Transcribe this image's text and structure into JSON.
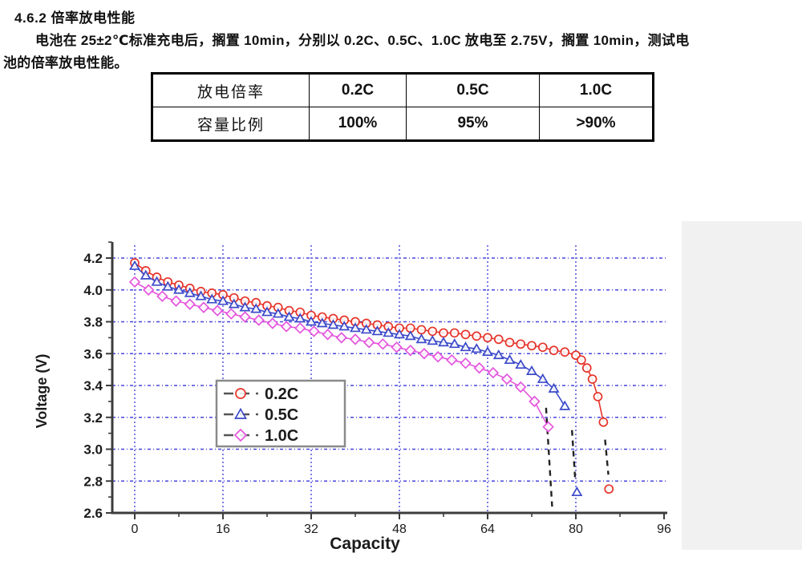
{
  "document": {
    "heading": "4.6.2 倍率放电性能",
    "paragraph_line1": "电池在 25±2℃标准充电后，搁置 10min，分别以 0.2C、0.5C、1.0C 放电至 2.75V，搁置 10min，测试电",
    "paragraph_line2": "池的倍率放电性能。"
  },
  "table": {
    "rows": [
      [
        "放电倍率",
        "0.2C",
        "0.5C",
        "1.0C"
      ],
      [
        "容量比例",
        "100%",
        "95%",
        ">90%"
      ]
    ]
  },
  "chart_data": {
    "type": "line",
    "title": "",
    "xlabel": "Capacity",
    "ylabel": "Voltage (V)",
    "xlim": [
      -4,
      96.5
    ],
    "ylim": [
      2.6,
      4.3
    ],
    "xticks": [
      0,
      16,
      32,
      48,
      64,
      80,
      96
    ],
    "yticks": [
      2.6,
      2.8,
      3.0,
      3.2,
      3.4,
      3.6,
      3.8,
      4.0,
      4.2
    ],
    "grid": true,
    "grid_color": "#4646dd",
    "axis_color": "#3c3c3c",
    "legend_position": "center-left",
    "series": [
      {
        "name": "0.2C",
        "color": "#e63329",
        "marker": "circle",
        "points": [
          [
            0,
            4.17
          ],
          [
            2,
            4.12
          ],
          [
            4,
            4.08
          ],
          [
            6,
            4.05
          ],
          [
            8,
            4.03
          ],
          [
            10,
            4.01
          ],
          [
            12,
            3.99
          ],
          [
            14,
            3.98
          ],
          [
            16,
            3.97
          ],
          [
            18,
            3.95
          ],
          [
            20,
            3.93
          ],
          [
            22,
            3.92
          ],
          [
            24,
            3.9
          ],
          [
            26,
            3.89
          ],
          [
            28,
            3.87
          ],
          [
            30,
            3.86
          ],
          [
            32,
            3.84
          ],
          [
            34,
            3.83
          ],
          [
            36,
            3.82
          ],
          [
            38,
            3.81
          ],
          [
            40,
            3.8
          ],
          [
            42,
            3.79
          ],
          [
            44,
            3.78
          ],
          [
            46,
            3.77
          ],
          [
            48,
            3.76
          ],
          [
            50,
            3.76
          ],
          [
            52,
            3.75
          ],
          [
            54,
            3.74
          ],
          [
            56,
            3.73
          ],
          [
            58,
            3.73
          ],
          [
            60,
            3.72
          ],
          [
            62,
            3.71
          ],
          [
            64,
            3.7
          ],
          [
            66,
            3.69
          ],
          [
            68,
            3.67
          ],
          [
            70,
            3.66
          ],
          [
            72,
            3.65
          ],
          [
            74,
            3.64
          ],
          [
            76,
            3.62
          ],
          [
            78,
            3.61
          ],
          [
            80,
            3.59
          ],
          [
            81,
            3.56
          ],
          [
            82,
            3.51
          ],
          [
            83,
            3.44
          ],
          [
            84,
            3.33
          ],
          [
            85,
            3.17
          ]
        ],
        "drop": {
          "x1": 85.3,
          "v1": 3.06,
          "x2": 85.9,
          "v2": 2.84
        },
        "end_point": [
          86,
          2.75
        ]
      },
      {
        "name": "0.5C",
        "color": "#3b49c9",
        "marker": "triangle",
        "points": [
          [
            0,
            4.15
          ],
          [
            2,
            4.09
          ],
          [
            4,
            4.05
          ],
          [
            6,
            4.02
          ],
          [
            8,
            4.0
          ],
          [
            10,
            3.98
          ],
          [
            12,
            3.96
          ],
          [
            14,
            3.94
          ],
          [
            16,
            3.93
          ],
          [
            18,
            3.91
          ],
          [
            20,
            3.89
          ],
          [
            22,
            3.88
          ],
          [
            24,
            3.86
          ],
          [
            26,
            3.85
          ],
          [
            28,
            3.83
          ],
          [
            30,
            3.82
          ],
          [
            32,
            3.8
          ],
          [
            34,
            3.79
          ],
          [
            36,
            3.78
          ],
          [
            38,
            3.77
          ],
          [
            40,
            3.76
          ],
          [
            42,
            3.75
          ],
          [
            44,
            3.74
          ],
          [
            46,
            3.73
          ],
          [
            48,
            3.72
          ],
          [
            50,
            3.71
          ],
          [
            52,
            3.69
          ],
          [
            54,
            3.68
          ],
          [
            56,
            3.67
          ],
          [
            58,
            3.66
          ],
          [
            60,
            3.64
          ],
          [
            62,
            3.63
          ],
          [
            64,
            3.61
          ],
          [
            66,
            3.59
          ],
          [
            68,
            3.56
          ],
          [
            70,
            3.53
          ],
          [
            72,
            3.49
          ],
          [
            74,
            3.44
          ],
          [
            76,
            3.38
          ],
          [
            78,
            3.27
          ]
        ],
        "drop": {
          "x1": 79.3,
          "v1": 3.12,
          "x2": 79.9,
          "v2": 2.8
        },
        "end_point": [
          80.2,
          2.73
        ]
      },
      {
        "name": "1.0C",
        "color": "#e455dd",
        "marker": "diamond",
        "points": [
          [
            0,
            4.05
          ],
          [
            2.5,
            4.0
          ],
          [
            5,
            3.96
          ],
          [
            7.5,
            3.93
          ],
          [
            10,
            3.91
          ],
          [
            12.5,
            3.89
          ],
          [
            15,
            3.87
          ],
          [
            17.5,
            3.85
          ],
          [
            20,
            3.83
          ],
          [
            22.5,
            3.81
          ],
          [
            25,
            3.79
          ],
          [
            27.5,
            3.77
          ],
          [
            30,
            3.76
          ],
          [
            32.5,
            3.74
          ],
          [
            35,
            3.72
          ],
          [
            37.5,
            3.7
          ],
          [
            40,
            3.69
          ],
          [
            42.5,
            3.67
          ],
          [
            45,
            3.66
          ],
          [
            47.5,
            3.64
          ],
          [
            50,
            3.62
          ],
          [
            52.5,
            3.6
          ],
          [
            55,
            3.58
          ],
          [
            57.5,
            3.56
          ],
          [
            60,
            3.54
          ],
          [
            62.5,
            3.51
          ],
          [
            65,
            3.48
          ],
          [
            67.5,
            3.44
          ],
          [
            70,
            3.39
          ],
          [
            72.5,
            3.3
          ],
          [
            75,
            3.14
          ]
        ],
        "drop": {
          "x1": 74.6,
          "v1": 3.26,
          "x2": 75.7,
          "v2": 2.64
        },
        "end_point": null
      }
    ]
  }
}
